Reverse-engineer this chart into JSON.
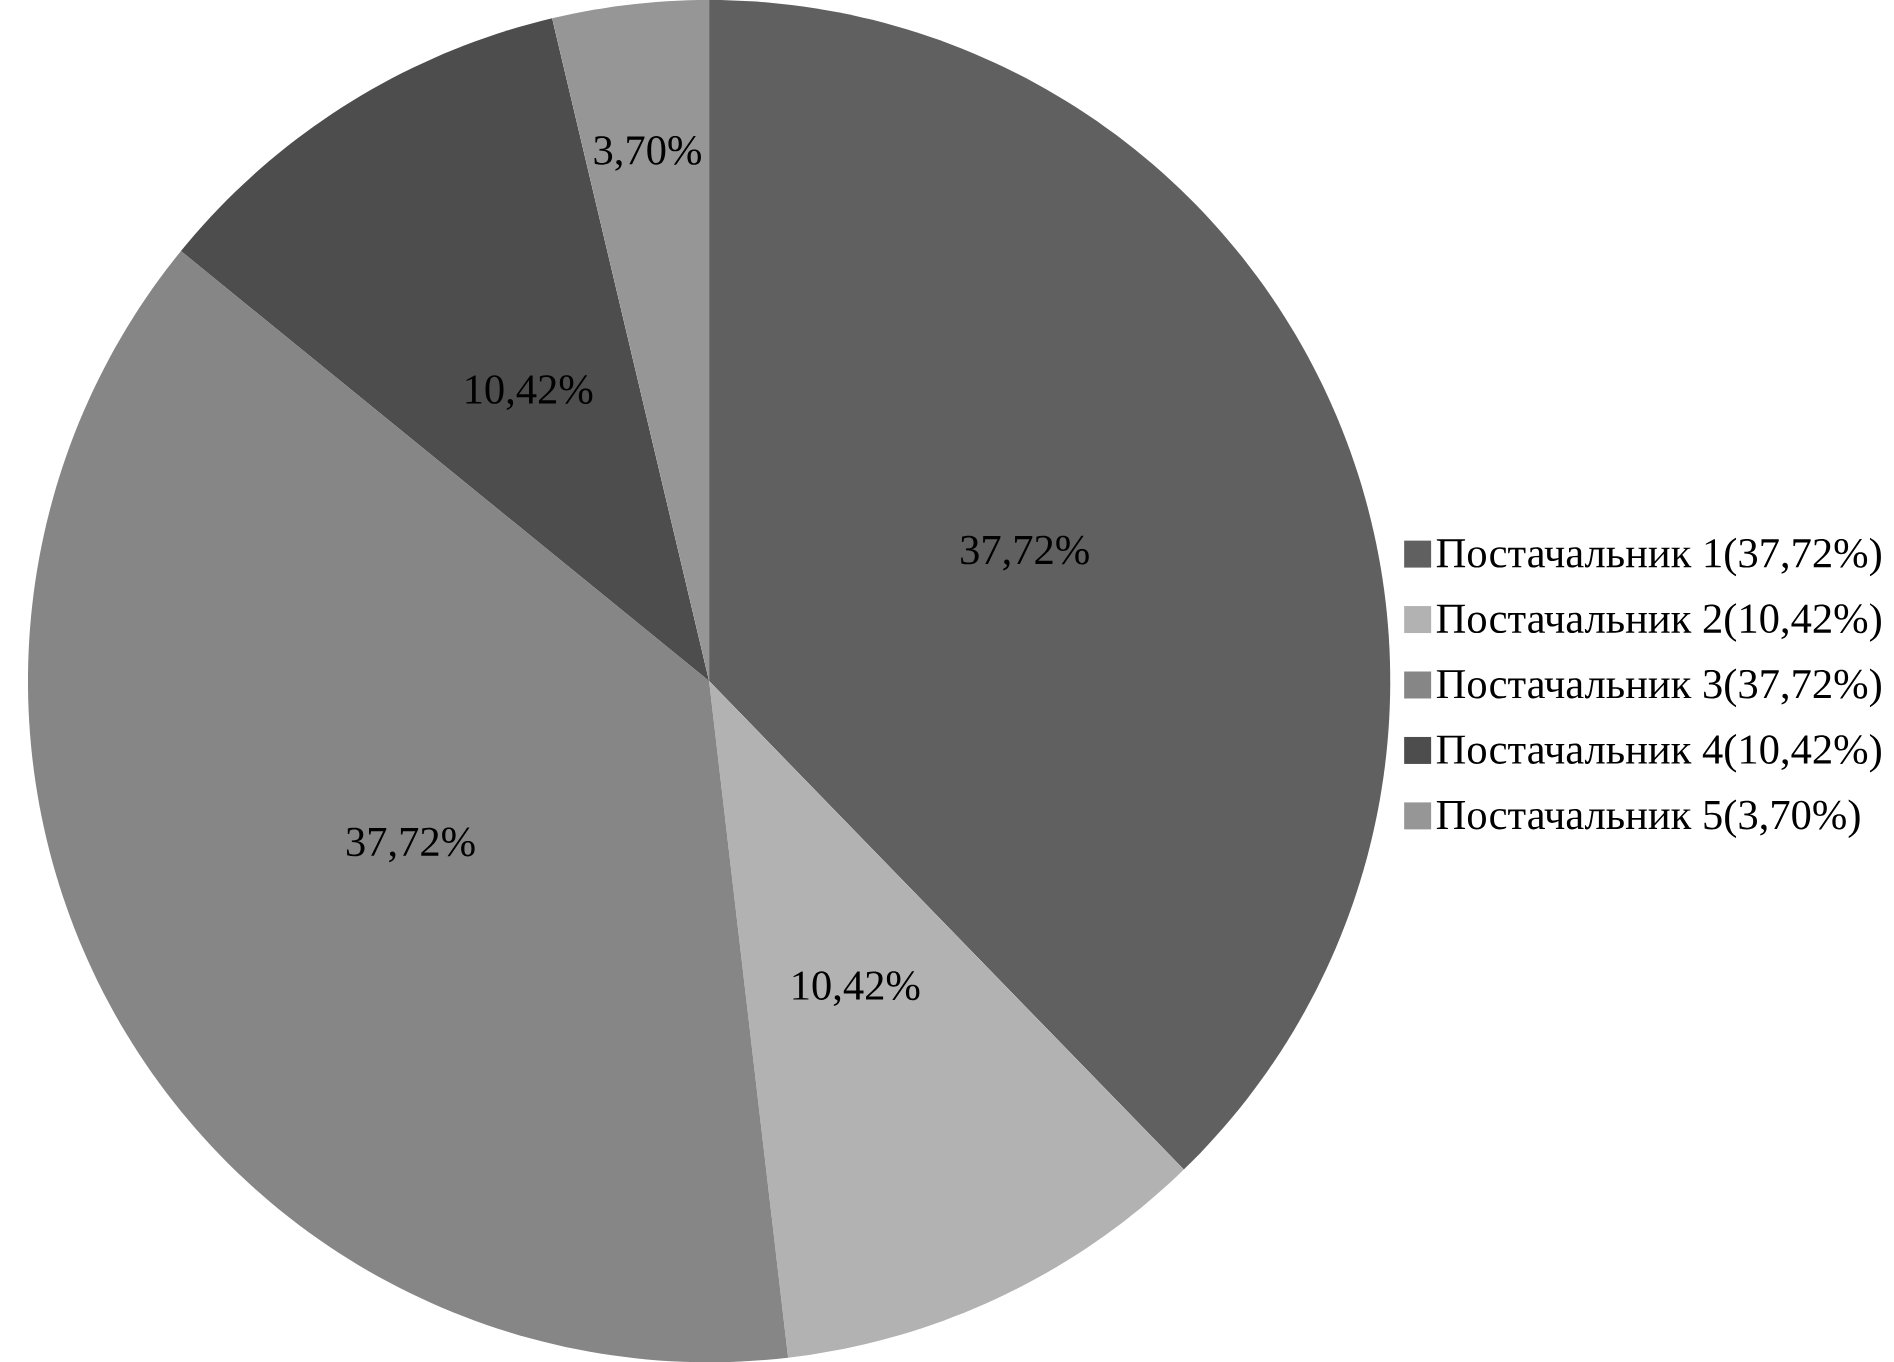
{
  "chart_data": {
    "type": "pie",
    "categories": [
      "Постачальник 1(37,72%)",
      "Постачальник 2(10,42%)",
      "Постачальник 3(37,72%)",
      "Постачальник 4(10,42%)",
      "Постачальник 5(3,70%)"
    ],
    "values": [
      37.72,
      10.42,
      37.72,
      10.42,
      3.7
    ],
    "value_labels": [
      "37,72%",
      "10,42%",
      "37,72%",
      "10,42%",
      "3,70%"
    ],
    "colors": [
      "#606060",
      "#b2b2b2",
      "#868686",
      "#4d4d4d",
      "#969696"
    ],
    "legend": "right"
  }
}
